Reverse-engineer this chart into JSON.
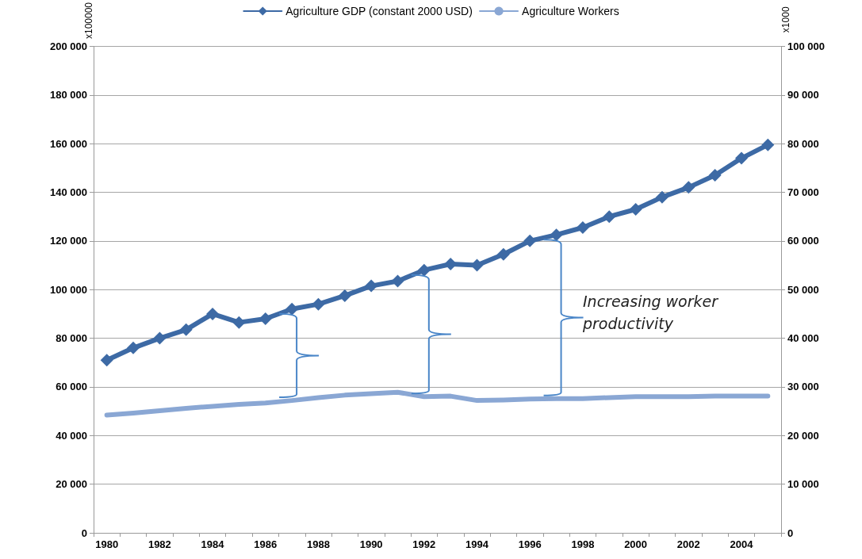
{
  "chart_data": {
    "type": "line",
    "categories": [
      "1980",
      null,
      "1982",
      null,
      "1984",
      null,
      "1986",
      null,
      "1988",
      null,
      "1990",
      null,
      "1992",
      null,
      "1994",
      null,
      "1996",
      null,
      "1998",
      null,
      "2000",
      null,
      "2002",
      null,
      "2004",
      null
    ],
    "series": [
      {
        "name": "Agriculture GDP (constant 2000 USD)",
        "color": "#3d6aa5",
        "marker": "diamond",
        "values": [
          71000,
          76000,
          80000,
          83500,
          90000,
          86500,
          88000,
          92000,
          94000,
          97500,
          101500,
          103500,
          108000,
          110500,
          110000,
          114500,
          120000,
          122500,
          125500,
          130000,
          133000,
          138000,
          142000,
          147000,
          154000,
          159500
        ]
      },
      {
        "name": "Agriculture Workers",
        "color": "#8aa7d4",
        "marker": "none",
        "axis": "y2",
        "values": [
          24200,
          24600,
          25100,
          25600,
          26000,
          26400,
          26700,
          27200,
          27800,
          28300,
          28600,
          28900,
          28000,
          28100,
          27200,
          27300,
          27500,
          27600,
          27600,
          27800,
          28000,
          28000,
          28000,
          28100,
          28100,
          28100
        ]
      }
    ],
    "ylabel": "x100000",
    "y2label": "x1000",
    "ylim": [
      0,
      200000
    ],
    "yticks": [
      {
        "value": 0,
        "label": "0"
      },
      {
        "value": 20000,
        "label": "20 000"
      },
      {
        "value": 40000,
        "label": "40 000"
      },
      {
        "value": 60000,
        "label": "60 000"
      },
      {
        "value": 80000,
        "label": "80 000"
      },
      {
        "value": 100000,
        "label": "100 000"
      },
      {
        "value": 120000,
        "label": "120 000"
      },
      {
        "value": 140000,
        "label": "140 000"
      },
      {
        "value": 160000,
        "label": "160 000"
      },
      {
        "value": 180000,
        "label": "180 000"
      },
      {
        "value": 200000,
        "label": "200 000"
      }
    ],
    "y2lim": [
      0,
      100000
    ],
    "y2ticks": [
      {
        "value": 0,
        "label": "0"
      },
      {
        "value": 10000,
        "label": "10 000"
      },
      {
        "value": 20000,
        "label": "20 000"
      },
      {
        "value": 30000,
        "label": "30 000"
      },
      {
        "value": 40000,
        "label": "40 000"
      },
      {
        "value": 50000,
        "label": "50 000"
      },
      {
        "value": 60000,
        "label": "60 000"
      },
      {
        "value": 70000,
        "label": "70 000"
      },
      {
        "value": 80000,
        "label": "80 000"
      },
      {
        "value": 90000,
        "label": "90 000"
      },
      {
        "value": 100000,
        "label": "100 000"
      }
    ],
    "annotations": [
      "Increasing worker productivity"
    ],
    "grid": "y",
    "legend": "top"
  }
}
